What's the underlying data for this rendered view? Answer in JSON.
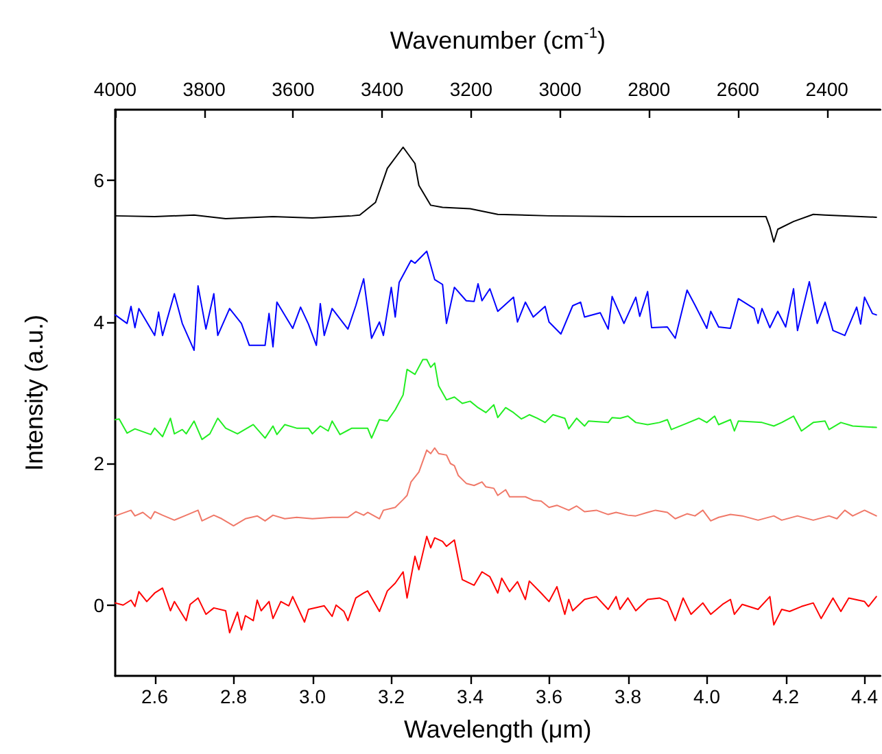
{
  "chart_data": {
    "type": "line",
    "xlabel": "Wavelength (μm)",
    "x2label": "Wavenumber (cm$^{-1}$)",
    "ylabel": "Intensity (a.u.)",
    "xlim": [
      2.5,
      4.44
    ],
    "xticks": [
      2.6,
      2.8,
      {
        "value": 3,
        "label": "3.0"
      },
      3.2,
      3.4,
      3.6,
      3.8,
      {
        "value": 4,
        "label": "4.0"
      },
      4.2,
      4.4
    ],
    "x2lim": [
      4000,
      2280
    ],
    "x2ticks": [
      4000,
      3800,
      3600,
      3400,
      3200,
      3000,
      2800,
      2600,
      2400
    ],
    "ylim": [
      -1,
      7
    ],
    "yticks": [
      0,
      2,
      4,
      6
    ],
    "grid": false,
    "marker": "none",
    "line_style": "solid",
    "series": [
      {
        "color": "#000000",
        "x": [
          2.5,
          2.6,
          2.7,
          2.78,
          2.9,
          3.0,
          3.1,
          3.12,
          3.16,
          3.19,
          3.23,
          3.26,
          3.27,
          3.3,
          3.33,
          3.4,
          3.47,
          3.6,
          3.8,
          4.0,
          4.15,
          4.16,
          4.17,
          4.18,
          4.22,
          4.27,
          4.3,
          4.43
        ],
        "values": [
          5.5,
          5.49,
          5.51,
          5.46,
          5.49,
          5.47,
          5.5,
          5.51,
          5.69,
          6.17,
          6.47,
          6.24,
          5.93,
          5.65,
          5.62,
          5.6,
          5.52,
          5.5,
          5.49,
          5.49,
          5.49,
          5.34,
          5.13,
          5.31,
          5.42,
          5.52,
          5.51,
          5.48
        ]
      },
      {
        "color": "#0000ff",
        "x": [
          2.5,
          2.53,
          2.54,
          2.55,
          2.56,
          2.6,
          2.61,
          2.62,
          2.65,
          2.67,
          2.7,
          2.71,
          2.73,
          2.75,
          2.76,
          2.79,
          2.82,
          2.84,
          2.88,
          2.89,
          2.9,
          2.91,
          2.95,
          2.97,
          2.99,
          3.01,
          3.02,
          3.03,
          3.05,
          3.09,
          3.11,
          3.13,
          3.15,
          3.17,
          3.18,
          3.2,
          3.21,
          3.22,
          3.25,
          3.26,
          3.29,
          3.31,
          3.33,
          3.34,
          3.36,
          3.39,
          3.41,
          3.42,
          3.43,
          3.45,
          3.47,
          3.51,
          3.52,
          3.54,
          3.56,
          3.59,
          3.6,
          3.63,
          3.66,
          3.68,
          3.69,
          3.73,
          3.75,
          3.76,
          3.79,
          3.82,
          3.83,
          3.85,
          3.86,
          3.9,
          3.92,
          3.95,
          3.97,
          4.0,
          4.01,
          4.03,
          4.06,
          4.08,
          4.12,
          4.13,
          4.14,
          4.16,
          4.18,
          4.2,
          4.22,
          4.23,
          4.26,
          4.28,
          4.3,
          4.32,
          4.35,
          4.38,
          4.39,
          4.4,
          4.42,
          4.43
        ],
        "values": [
          4.1,
          3.98,
          4.22,
          3.92,
          4.19,
          3.81,
          4.14,
          3.81,
          4.4,
          3.98,
          3.6,
          4.51,
          3.9,
          4.4,
          3.81,
          4.19,
          3.98,
          3.67,
          3.67,
          4.12,
          3.65,
          4.28,
          3.91,
          4.21,
          3.97,
          3.67,
          4.26,
          3.81,
          4.19,
          3.9,
          4.23,
          4.61,
          3.77,
          4.0,
          3.81,
          4.49,
          4.07,
          4.56,
          4.87,
          4.83,
          5.0,
          4.6,
          4.53,
          3.98,
          4.49,
          4.3,
          4.29,
          4.54,
          4.3,
          4.47,
          4.15,
          4.35,
          4.0,
          4.28,
          4.07,
          4.22,
          4.0,
          3.83,
          4.23,
          4.28,
          4.07,
          4.13,
          3.9,
          4.36,
          3.98,
          4.35,
          4.08,
          4.43,
          3.92,
          3.93,
          3.77,
          4.45,
          4.24,
          3.91,
          4.15,
          3.93,
          3.91,
          4.33,
          4.19,
          3.98,
          4.19,
          3.92,
          4.15,
          3.93,
          4.47,
          3.88,
          4.57,
          3.98,
          4.28,
          3.88,
          3.81,
          4.21,
          3.97,
          4.35,
          4.12,
          4.1
        ]
      },
      {
        "color": "#22ee22",
        "x": [
          2.5,
          2.51,
          2.53,
          2.55,
          2.59,
          2.6,
          2.62,
          2.64,
          2.65,
          2.67,
          2.68,
          2.7,
          2.72,
          2.74,
          2.76,
          2.78,
          2.81,
          2.85,
          2.88,
          2.9,
          2.91,
          2.93,
          2.96,
          2.99,
          3.0,
          3.02,
          3.04,
          3.05,
          3.07,
          3.1,
          3.14,
          3.15,
          3.17,
          3.19,
          3.21,
          3.23,
          3.24,
          3.26,
          3.28,
          3.29,
          3.3,
          3.31,
          3.32,
          3.34,
          3.36,
          3.38,
          3.4,
          3.42,
          3.44,
          3.46,
          3.47,
          3.49,
          3.51,
          3.53,
          3.55,
          3.57,
          3.59,
          3.61,
          3.64,
          3.65,
          3.67,
          3.69,
          3.7,
          3.75,
          3.76,
          3.78,
          3.8,
          3.82,
          3.85,
          3.88,
          3.9,
          3.91,
          3.95,
          3.98,
          4.0,
          4.02,
          4.03,
          4.06,
          4.07,
          4.08,
          4.14,
          4.17,
          4.19,
          4.22,
          4.24,
          4.27,
          4.3,
          4.31,
          4.34,
          4.37,
          4.43
        ],
        "values": [
          2.62,
          2.63,
          2.43,
          2.49,
          2.41,
          2.5,
          2.38,
          2.64,
          2.42,
          2.48,
          2.42,
          2.6,
          2.34,
          2.42,
          2.64,
          2.5,
          2.42,
          2.55,
          2.36,
          2.53,
          2.41,
          2.55,
          2.5,
          2.5,
          2.42,
          2.53,
          2.46,
          2.6,
          2.41,
          2.5,
          2.5,
          2.36,
          2.62,
          2.6,
          2.76,
          2.97,
          3.33,
          3.26,
          3.47,
          3.47,
          3.36,
          3.42,
          3.1,
          2.9,
          2.94,
          2.85,
          2.88,
          2.79,
          2.72,
          2.83,
          2.65,
          2.79,
          2.72,
          2.63,
          2.69,
          2.64,
          2.58,
          2.69,
          2.64,
          2.49,
          2.64,
          2.53,
          2.6,
          2.58,
          2.65,
          2.64,
          2.67,
          2.58,
          2.55,
          2.58,
          2.62,
          2.48,
          2.57,
          2.64,
          2.58,
          2.67,
          2.55,
          2.62,
          2.46,
          2.6,
          2.58,
          2.53,
          2.58,
          2.67,
          2.46,
          2.58,
          2.6,
          2.48,
          2.58,
          2.53,
          2.51
        ]
      },
      {
        "color": "#f07868",
        "x": [
          2.5,
          2.54,
          2.55,
          2.57,
          2.59,
          2.6,
          2.62,
          2.65,
          2.68,
          2.71,
          2.72,
          2.75,
          2.77,
          2.8,
          2.83,
          2.86,
          2.88,
          2.9,
          2.93,
          2.96,
          3.0,
          3.05,
          3.09,
          3.11,
          3.13,
          3.14,
          3.17,
          3.18,
          3.21,
          3.23,
          3.24,
          3.25,
          3.27,
          3.29,
          3.3,
          3.31,
          3.32,
          3.34,
          3.35,
          3.36,
          3.37,
          3.39,
          3.41,
          3.43,
          3.44,
          3.46,
          3.47,
          3.49,
          3.5,
          3.54,
          3.56,
          3.58,
          3.6,
          3.62,
          3.65,
          3.67,
          3.69,
          3.72,
          3.75,
          3.77,
          3.8,
          3.82,
          3.85,
          3.87,
          3.9,
          3.92,
          3.95,
          3.97,
          3.99,
          4.01,
          4.03,
          4.06,
          4.09,
          4.13,
          4.17,
          4.19,
          4.23,
          4.27,
          4.31,
          4.33,
          4.35,
          4.37,
          4.4,
          4.43
        ],
        "values": [
          1.26,
          1.34,
          1.26,
          1.31,
          1.22,
          1.32,
          1.27,
          1.2,
          1.27,
          1.34,
          1.19,
          1.27,
          1.22,
          1.12,
          1.22,
          1.26,
          1.19,
          1.27,
          1.22,
          1.24,
          1.22,
          1.24,
          1.24,
          1.32,
          1.27,
          1.31,
          1.22,
          1.34,
          1.38,
          1.49,
          1.55,
          1.74,
          1.88,
          2.19,
          2.14,
          2.22,
          2.14,
          2.12,
          2.0,
          1.97,
          1.83,
          1.72,
          1.69,
          1.74,
          1.67,
          1.65,
          1.55,
          1.63,
          1.53,
          1.53,
          1.48,
          1.47,
          1.38,
          1.41,
          1.34,
          1.4,
          1.32,
          1.34,
          1.28,
          1.31,
          1.27,
          1.26,
          1.31,
          1.34,
          1.31,
          1.22,
          1.29,
          1.26,
          1.34,
          1.19,
          1.24,
          1.28,
          1.26,
          1.2,
          1.26,
          1.2,
          1.26,
          1.2,
          1.26,
          1.22,
          1.34,
          1.26,
          1.34,
          1.26
        ]
      },
      {
        "color": "#ff0000",
        "x": [
          2.5,
          2.52,
          2.54,
          2.55,
          2.56,
          2.58,
          2.6,
          2.62,
          2.64,
          2.65,
          2.68,
          2.69,
          2.71,
          2.73,
          2.75,
          2.78,
          2.79,
          2.81,
          2.82,
          2.83,
          2.85,
          2.86,
          2.87,
          2.89,
          2.9,
          2.92,
          2.94,
          2.95,
          2.98,
          2.99,
          3.03,
          3.05,
          3.06,
          3.08,
          3.09,
          3.11,
          3.13,
          3.14,
          3.17,
          3.19,
          3.21,
          3.23,
          3.24,
          3.26,
          3.27,
          3.29,
          3.3,
          3.31,
          3.33,
          3.34,
          3.36,
          3.38,
          3.41,
          3.43,
          3.45,
          3.47,
          3.48,
          3.5,
          3.52,
          3.54,
          3.55,
          3.58,
          3.6,
          3.62,
          3.64,
          3.65,
          3.66,
          3.69,
          3.72,
          3.75,
          3.77,
          3.78,
          3.8,
          3.82,
          3.85,
          3.88,
          3.9,
          3.92,
          3.94,
          3.96,
          3.99,
          4.01,
          4.04,
          4.06,
          4.07,
          4.09,
          4.13,
          4.16,
          4.17,
          4.19,
          4.21,
          4.24,
          4.27,
          4.29,
          4.32,
          4.34,
          4.36,
          4.4,
          4.41,
          4.43
        ],
        "values": [
          0.03,
          0.0,
          0.07,
          -0.02,
          0.19,
          0.05,
          0.17,
          0.24,
          -0.08,
          0.05,
          -0.22,
          0.01,
          0.1,
          -0.13,
          -0.04,
          -0.08,
          -0.39,
          -0.1,
          -0.35,
          -0.15,
          -0.22,
          0.07,
          -0.08,
          0.05,
          -0.19,
          0.05,
          -0.01,
          0.12,
          -0.24,
          -0.06,
          -0.01,
          -0.16,
          0.0,
          -0.09,
          -0.22,
          0.1,
          0.17,
          0.2,
          -0.09,
          0.2,
          0.31,
          0.47,
          0.1,
          0.69,
          0.5,
          0.97,
          0.81,
          0.95,
          0.9,
          0.83,
          0.92,
          0.36,
          0.28,
          0.47,
          0.4,
          0.17,
          0.38,
          0.19,
          0.33,
          0.08,
          0.34,
          0.17,
          0.05,
          0.26,
          -0.13,
          0.08,
          -0.08,
          0.08,
          0.12,
          -0.06,
          0.12,
          -0.06,
          0.1,
          -0.08,
          0.08,
          0.1,
          0.05,
          -0.22,
          0.1,
          -0.13,
          0.03,
          -0.13,
          0.01,
          0.08,
          -0.13,
          0.01,
          -0.06,
          0.12,
          -0.28,
          -0.06,
          -0.09,
          -0.02,
          0.03,
          -0.19,
          0.1,
          -0.09,
          0.1,
          0.05,
          -0.02,
          0.12
        ]
      }
    ]
  }
}
